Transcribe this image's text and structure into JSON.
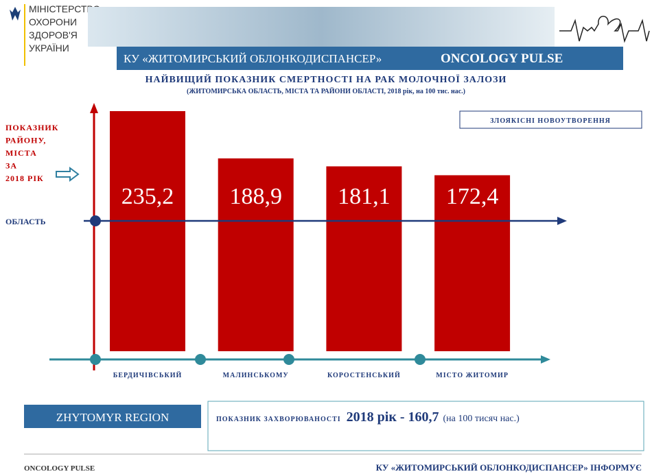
{
  "header": {
    "ministry": [
      "МІНІСТЕРСТВО",
      "ОХОРОНИ",
      "ЗДОРОВ'Я",
      "УКРАЇНИ"
    ],
    "banner": "КУ «ЖИТОМИРСЬКИЙ ОБЛОНКОДИСПАНСЕР»",
    "brand": "ONCOLOGY  PULSE"
  },
  "chart_data": {
    "type": "bar",
    "title": "НАЙВИЩИЙ ПОКАЗНИК СМЕРТНОСТІ НА РАК МОЛОЧНОЇ ЗАЛОЗИ",
    "subtitle": "(ЖИТОМИРСЬКА ОБЛАСТЬ, МІСТА ТА РАЙОНИ ОБЛАСТІ, 2018 рік, на 100 тис. нас.)",
    "badge": "ЗЛОЯКІСНІ НОВОУТВОРЕННЯ",
    "y_label": [
      "ПОКАЗНИК",
      "РАЙОНУ,",
      "МІСТА",
      " ЗА",
      "2018 РІК"
    ],
    "reference_label": "ОБЛАСТЬ",
    "categories": [
      "БЕРДИЧІВСЬКИЙ",
      "МАЛИНСЬКОМУ",
      "КОРОСТЕНСЬКИЙ",
      "МІСТО ЖИТОМИР"
    ],
    "values": [
      235.2,
      188.9,
      181.1,
      172.4
    ],
    "value_labels": [
      "235,2",
      "188,9",
      "181,1",
      "172,4"
    ],
    "color": "#c00000"
  },
  "footer": {
    "region": "ZHYTOMYR REGION",
    "incidence_label": "ПОКАЗНИК  ЗАХВОРЮВАНОСТІ",
    "incidence_value": "2018 рік - 160,7",
    "incidence_unit": "(на 100 тисяч нас.)",
    "left": "ONCOLOGY PULSE",
    "right": "КУ «ЖИТОМИРСЬКИЙ ОБЛОНКОДИСПАНСЕР» ІНФОРМУЄ"
  }
}
